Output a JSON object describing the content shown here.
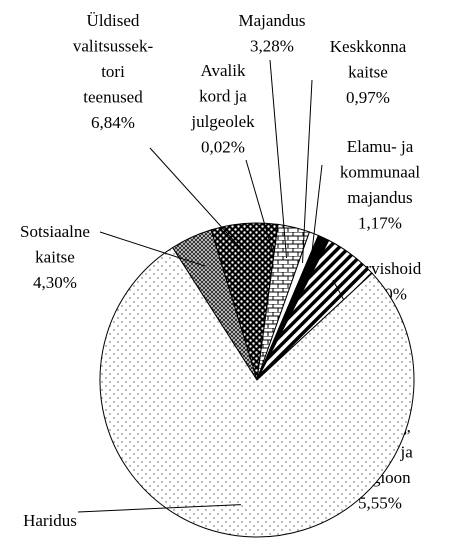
{
  "chart_data": {
    "type": "pie",
    "categories": [
      [
        "Üldised",
        "valitsussek-",
        "tori",
        "teenused"
      ],
      [
        "Avalik",
        "kord ja",
        "julgeolek"
      ],
      [
        "Majandus"
      ],
      [
        "Keskkonna",
        "kaitse"
      ],
      [
        "Elamu- ja",
        "kommunaal",
        "majandus"
      ],
      [
        "Tervishoid"
      ],
      [
        "Vabaaeg,",
        "kultuur ja",
        "religioon"
      ],
      [
        "Haridus"
      ],
      [
        "Sotsiaalne",
        "kaitse"
      ]
    ],
    "values": [
      6.84,
      0.02,
      3.28,
      0.97,
      1.17,
      0.0,
      5.55,
      77.87,
      4.3
    ],
    "value_labels": [
      "6,84%",
      "0,02%",
      "3,28%",
      "0,97%",
      "1,17%",
      "0,00%",
      "5,55%",
      null,
      "4,30%"
    ]
  }
}
